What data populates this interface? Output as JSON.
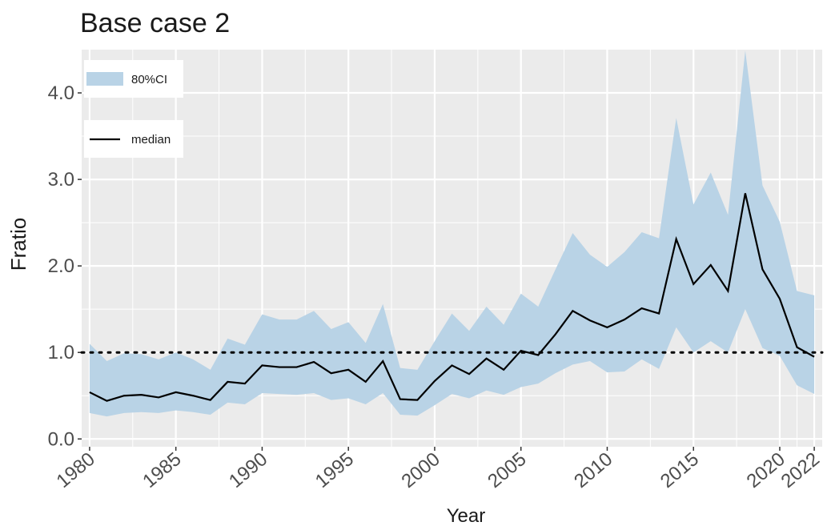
{
  "chart_data": {
    "type": "band-line",
    "title": "Base case 2",
    "x_label": "Year",
    "y_label": "Fratio",
    "x": [
      1980,
      1981,
      1982,
      1983,
      1984,
      1985,
      1986,
      1987,
      1988,
      1989,
      1990,
      1991,
      1992,
      1993,
      1994,
      1995,
      1996,
      1997,
      1998,
      1999,
      2000,
      2001,
      2002,
      2003,
      2004,
      2005,
      2006,
      2007,
      2008,
      2009,
      2010,
      2011,
      2012,
      2013,
      2014,
      2015,
      2016,
      2017,
      2018,
      2019,
      2020,
      2021,
      2022
    ],
    "series": [
      {
        "name": "80%CI",
        "color": "#b9d3e6",
        "lower": [
          0.3,
          0.26,
          0.3,
          0.31,
          0.3,
          0.33,
          0.31,
          0.28,
          0.42,
          0.4,
          0.53,
          0.52,
          0.51,
          0.53,
          0.45,
          0.47,
          0.4,
          0.53,
          0.28,
          0.27,
          0.39,
          0.52,
          0.47,
          0.56,
          0.51,
          0.6,
          0.64,
          0.76,
          0.86,
          0.9,
          0.77,
          0.78,
          0.92,
          0.81,
          1.29,
          1.0,
          1.13,
          1.0,
          1.5,
          1.05,
          0.96,
          0.62,
          0.52
        ],
        "upper": [
          1.1,
          0.9,
          0.99,
          0.98,
          0.92,
          1.0,
          0.92,
          0.8,
          1.16,
          1.09,
          1.44,
          1.38,
          1.38,
          1.48,
          1.27,
          1.35,
          1.11,
          1.56,
          0.82,
          0.8,
          1.13,
          1.45,
          1.25,
          1.53,
          1.32,
          1.68,
          1.53,
          1.96,
          2.38,
          2.13,
          1.99,
          2.16,
          2.39,
          2.32,
          3.71,
          2.71,
          3.08,
          2.59,
          4.49,
          2.93,
          2.51,
          1.71,
          1.66
        ]
      },
      {
        "name": "median",
        "color": "#000000",
        "values": [
          0.54,
          0.44,
          0.5,
          0.51,
          0.48,
          0.54,
          0.5,
          0.45,
          0.66,
          0.64,
          0.85,
          0.83,
          0.83,
          0.89,
          0.76,
          0.8,
          0.66,
          0.9,
          0.46,
          0.45,
          0.67,
          0.85,
          0.75,
          0.93,
          0.8,
          1.02,
          0.97,
          1.21,
          1.48,
          1.37,
          1.29,
          1.38,
          1.51,
          1.45,
          2.31,
          1.79,
          2.01,
          1.71,
          2.84,
          1.96,
          1.62,
          1.06,
          0.95
        ]
      }
    ],
    "reference_line": 1,
    "xlim": [
      1979.54,
      2022.46
    ],
    "xticks": [
      1980,
      1985,
      1990,
      1995,
      2000,
      2005,
      2010,
      2015,
      2020,
      2022
    ],
    "ylim": [
      -0.09,
      4.5
    ],
    "yticks": [
      {
        "value": 0,
        "label": "0.0"
      },
      {
        "value": 1,
        "label": "1.0"
      },
      {
        "value": 2,
        "label": "2.0"
      },
      {
        "value": 3,
        "label": "3.0"
      },
      {
        "value": 4,
        "label": "4.0"
      }
    ],
    "grid": true
  }
}
